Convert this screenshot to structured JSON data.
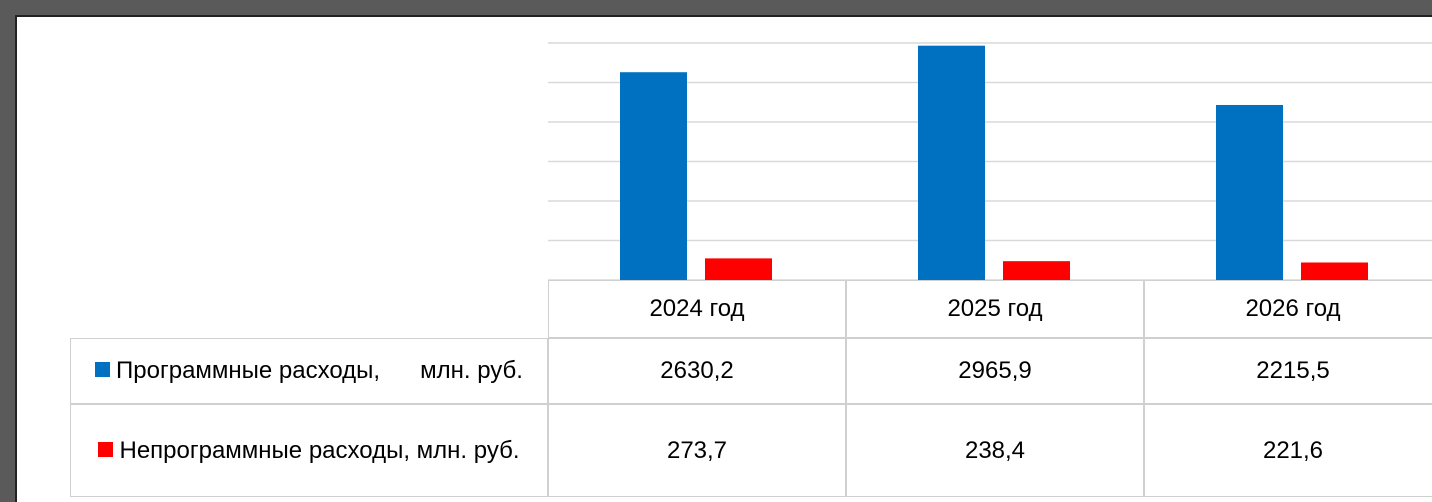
{
  "chart_data": {
    "type": "bar",
    "categories": [
      "2024 год",
      "2025 год",
      "2026 год"
    ],
    "series": [
      {
        "name": "Программные расходы,      млн. руб.",
        "color": "#0070c0",
        "values": [
          2630.2,
          2965.9,
          2215.5
        ],
        "value_labels": [
          "2630,2",
          "2965,9",
          "2215,5"
        ]
      },
      {
        "name": "Непрограммные расходы, млн. руб.",
        "color": "#ff0000",
        "values": [
          273.7,
          238.4,
          221.6
        ],
        "value_labels": [
          "273,7",
          "238,4",
          "221,6"
        ]
      }
    ],
    "ylim": [
      0,
      3000
    ],
    "yticks": [
      0,
      500,
      1000,
      1500,
      2000,
      2500,
      3000
    ],
    "grid": true
  }
}
